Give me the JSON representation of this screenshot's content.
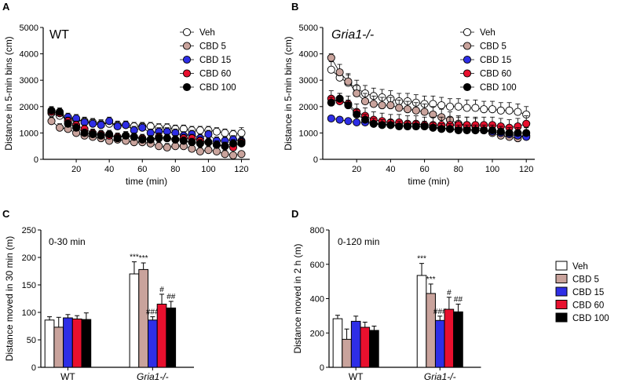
{
  "colors": {
    "Veh": "#ffffff",
    "CBD 5": "#c9a39c",
    "CBD 15": "#2e2ee6",
    "CBD 60": "#e8102e",
    "CBD 100": "#000000",
    "axis": "#000000",
    "error": "#000000"
  },
  "panels": {
    "A": {
      "letter": "A",
      "inset": "WT"
    },
    "B": {
      "letter": "B",
      "inset": "Gria1-/-"
    },
    "C": {
      "letter": "C",
      "inset": "0-30 min"
    },
    "D": {
      "letter": "D",
      "inset": "0-120 min"
    }
  },
  "chart_data": [
    {
      "id": "A",
      "type": "line",
      "title": "WT",
      "xlabel": "time (min)",
      "ylabel": "Distance in 5-min bins (cm)",
      "xlim": [
        0,
        125
      ],
      "ylim": [
        0,
        5000
      ],
      "xticks": [
        20,
        40,
        60,
        80,
        100,
        120
      ],
      "yticks": [
        0,
        1000,
        2000,
        3000,
        4000,
        5000
      ],
      "legend": "top-right",
      "x": [
        5,
        10,
        15,
        20,
        25,
        30,
        35,
        40,
        45,
        50,
        55,
        60,
        65,
        70,
        75,
        80,
        85,
        90,
        95,
        100,
        105,
        110,
        115,
        120
      ],
      "series": [
        {
          "name": "Veh",
          "values": [
            1750,
            1650,
            1550,
            1500,
            1450,
            1400,
            1350,
            1350,
            1300,
            1300,
            1250,
            1250,
            1250,
            1200,
            1200,
            1150,
            1150,
            1100,
            1100,
            1100,
            1050,
            1000,
            950,
            1000
          ],
          "err": [
            150,
            150,
            150,
            150,
            150,
            150,
            150,
            150,
            150,
            150,
            150,
            150,
            150,
            150,
            150,
            150,
            150,
            150,
            150,
            150,
            150,
            150,
            150,
            200
          ]
        },
        {
          "name": "CBD 5",
          "values": [
            1450,
            1200,
            1150,
            1000,
            900,
            850,
            800,
            700,
            750,
            700,
            650,
            650,
            600,
            500,
            450,
            500,
            500,
            400,
            300,
            350,
            300,
            200,
            150,
            200
          ],
          "err": [
            150,
            150,
            150,
            150,
            150,
            150,
            150,
            150,
            150,
            150,
            150,
            150,
            150,
            150,
            150,
            150,
            150,
            150,
            150,
            150,
            150,
            150,
            100,
            100
          ]
        },
        {
          "name": "CBD 15",
          "values": [
            1800,
            1750,
            1600,
            1550,
            1400,
            1350,
            1300,
            1450,
            1250,
            1300,
            1100,
            1200,
            1000,
            1050,
            1050,
            1000,
            900,
            950,
            800,
            950,
            700,
            700,
            750,
            700
          ],
          "err": [
            150,
            150,
            150,
            150,
            150,
            150,
            150,
            150,
            150,
            150,
            150,
            150,
            150,
            150,
            150,
            150,
            150,
            150,
            150,
            150,
            150,
            150,
            150,
            150
          ]
        },
        {
          "name": "CBD 60",
          "values": [
            1800,
            1750,
            1450,
            1300,
            1150,
            1000,
            950,
            900,
            850,
            900,
            850,
            800,
            750,
            850,
            800,
            750,
            800,
            800,
            700,
            650,
            550,
            500,
            450,
            650
          ],
          "err": [
            150,
            150,
            150,
            150,
            150,
            150,
            150,
            150,
            150,
            150,
            150,
            150,
            150,
            150,
            150,
            150,
            150,
            150,
            150,
            150,
            150,
            150,
            150,
            150
          ]
        },
        {
          "name": "CBD 100",
          "values": [
            1850,
            1800,
            1350,
            1200,
            1000,
            950,
            900,
            950,
            800,
            900,
            850,
            750,
            750,
            800,
            800,
            750,
            700,
            650,
            600,
            650,
            550,
            500,
            600,
            600
          ],
          "err": [
            150,
            150,
            150,
            150,
            150,
            150,
            150,
            150,
            150,
            150,
            150,
            150,
            150,
            150,
            150,
            150,
            150,
            150,
            150,
            150,
            150,
            150,
            150,
            150
          ]
        }
      ]
    },
    {
      "id": "B",
      "type": "line",
      "title": "Gria1-/-",
      "xlabel": "time (min)",
      "ylabel": "Distance in 5-min bins (cm)",
      "xlim": [
        0,
        125
      ],
      "ylim": [
        0,
        5000
      ],
      "xticks": [
        20,
        40,
        60,
        80,
        100,
        120
      ],
      "yticks": [
        0,
        1000,
        2000,
        3000,
        4000,
        5000
      ],
      "legend": "top-right",
      "x": [
        5,
        10,
        15,
        20,
        25,
        30,
        35,
        40,
        45,
        50,
        55,
        60,
        65,
        70,
        75,
        80,
        85,
        90,
        95,
        100,
        105,
        110,
        115,
        120
      ],
      "series": [
        {
          "name": "Veh",
          "values": [
            3400,
            3100,
            2900,
            2700,
            2500,
            2400,
            2350,
            2300,
            2200,
            2200,
            2150,
            2100,
            2100,
            2050,
            2000,
            2000,
            1950,
            1950,
            1900,
            1900,
            1850,
            1850,
            1800,
            1700
          ],
          "err": [
            300,
            300,
            300,
            300,
            300,
            300,
            300,
            300,
            300,
            300,
            300,
            300,
            300,
            300,
            300,
            300,
            300,
            300,
            300,
            300,
            300,
            300,
            300,
            300
          ]
        },
        {
          "name": "CBD 5",
          "values": [
            3850,
            3300,
            2950,
            2500,
            2200,
            2100,
            2050,
            2050,
            1950,
            1900,
            1850,
            1800,
            1700,
            1600,
            1500,
            1350,
            1300,
            1250,
            1100,
            1000,
            900,
            850,
            800,
            900
          ],
          "err": [
            150,
            300,
            300,
            300,
            300,
            300,
            300,
            300,
            300,
            300,
            300,
            300,
            300,
            300,
            300,
            300,
            300,
            300,
            300,
            300,
            300,
            300,
            300,
            300
          ]
        },
        {
          "name": "CBD 15",
          "values": [
            1550,
            1500,
            1450,
            1400,
            1400,
            1350,
            1350,
            1300,
            1300,
            1250,
            1250,
            1250,
            1200,
            1200,
            1150,
            1150,
            1150,
            1100,
            1100,
            1050,
            1000,
            950,
            900,
            850
          ],
          "err": [
            100,
            100,
            100,
            100,
            100,
            100,
            100,
            100,
            100,
            100,
            100,
            100,
            100,
            100,
            100,
            100,
            100,
            100,
            100,
            100,
            100,
            100,
            100,
            100
          ]
        },
        {
          "name": "CBD 60",
          "values": [
            2300,
            2200,
            2100,
            1800,
            1650,
            1500,
            1450,
            1400,
            1400,
            1350,
            1350,
            1300,
            1300,
            1300,
            1300,
            1300,
            1300,
            1300,
            1300,
            1300,
            1250,
            1200,
            1250,
            1350
          ],
          "err": [
            300,
            300,
            300,
            300,
            300,
            300,
            300,
            300,
            300,
            300,
            300,
            300,
            300,
            300,
            300,
            300,
            300,
            300,
            300,
            300,
            300,
            300,
            300,
            300
          ]
        },
        {
          "name": "CBD 100",
          "values": [
            2150,
            2300,
            2050,
            1700,
            1500,
            1350,
            1300,
            1300,
            1250,
            1250,
            1250,
            1250,
            1200,
            1150,
            1150,
            1100,
            1100,
            1100,
            1100,
            1100,
            1050,
            1000,
            1000,
            1000
          ],
          "err": [
            200,
            200,
            200,
            200,
            200,
            200,
            200,
            200,
            200,
            200,
            200,
            200,
            200,
            200,
            200,
            200,
            200,
            200,
            200,
            200,
            200,
            200,
            200,
            200
          ]
        }
      ]
    },
    {
      "id": "C",
      "type": "bar",
      "title": "0-30 min",
      "xlabel": "",
      "ylabel": "Distance moved in 30 min (m)",
      "ylim": [
        0,
        250
      ],
      "yticks": [
        0,
        50,
        100,
        150,
        200,
        250
      ],
      "categories": [
        "WT",
        "Gria1-/-"
      ],
      "series": [
        {
          "name": "Veh",
          "values": [
            86,
            170
          ],
          "err": [
            6,
            22
          ],
          "annotations": [
            "",
            "***"
          ]
        },
        {
          "name": "CBD 5",
          "values": [
            73,
            178
          ],
          "err": [
            18,
            12
          ],
          "annotations": [
            "",
            "***"
          ]
        },
        {
          "name": "CBD 15",
          "values": [
            90,
            86
          ],
          "err": [
            6,
            6
          ],
          "annotations": [
            "",
            "###"
          ]
        },
        {
          "name": "CBD 60",
          "values": [
            88,
            115
          ],
          "err": [
            6,
            18
          ],
          "annotations": [
            "",
            "#"
          ]
        },
        {
          "name": "CBD 100",
          "values": [
            87,
            108
          ],
          "err": [
            12,
            12
          ],
          "annotations": [
            "",
            "##"
          ]
        }
      ]
    },
    {
      "id": "D",
      "type": "bar",
      "title": "0-120 min",
      "xlabel": "",
      "ylabel": "Distance moved in 2 h (m)",
      "ylim": [
        0,
        800
      ],
      "yticks": [
        0,
        200,
        400,
        600,
        800
      ],
      "categories": [
        "WT",
        "Gria1-/-"
      ],
      "legend": "right",
      "series": [
        {
          "name": "Veh",
          "values": [
            283,
            535
          ],
          "err": [
            20,
            70
          ],
          "annotations": [
            "",
            "***"
          ]
        },
        {
          "name": "CBD 5",
          "values": [
            163,
            430
          ],
          "err": [
            60,
            55
          ],
          "annotations": [
            "",
            "***"
          ]
        },
        {
          "name": "CBD 15",
          "values": [
            268,
            273
          ],
          "err": [
            30,
            25
          ],
          "annotations": [
            "",
            "###"
          ]
        },
        {
          "name": "CBD 60",
          "values": [
            233,
            338
          ],
          "err": [
            30,
            70
          ],
          "annotations": [
            "",
            "#"
          ]
        },
        {
          "name": "CBD 100",
          "values": [
            215,
            323
          ],
          "err": [
            25,
            45
          ],
          "annotations": [
            "",
            "##"
          ]
        }
      ]
    }
  ]
}
